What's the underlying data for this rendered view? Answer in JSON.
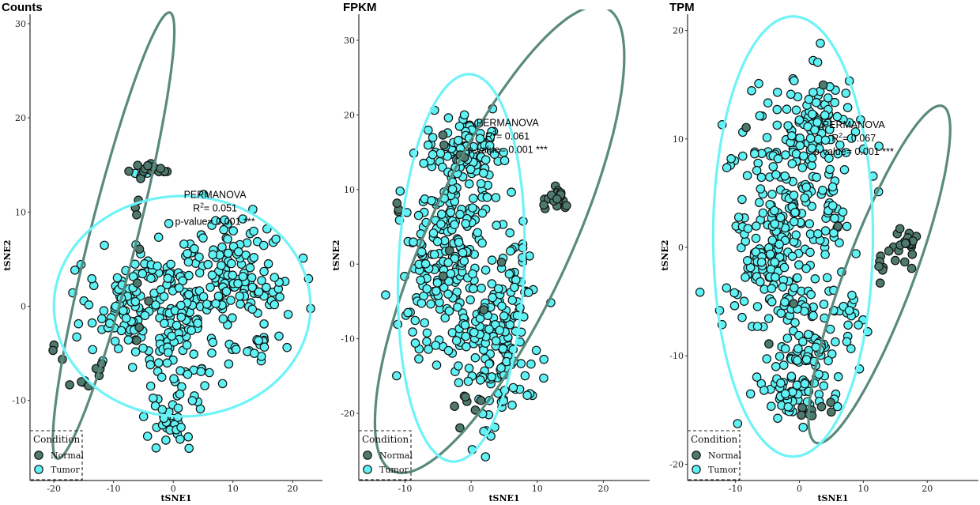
{
  "colors": {
    "normal": "#4e7a6e",
    "tumor": "#5ff2f5",
    "ellipse_normal": "#5a8a7e",
    "ellipse_tumor": "#6ef3f7"
  },
  "legend": {
    "title": "Condition",
    "items": [
      {
        "label": "Normal",
        "color": "#4e7a6e"
      },
      {
        "label": "Tumor",
        "color": "#5ff2f5"
      }
    ]
  },
  "chart_data": [
    {
      "type": "scatter",
      "title": "Counts",
      "xlabel": "tSNE1",
      "ylabel": "tSNE2",
      "xlim": [
        -24,
        25
      ],
      "ylim": [
        -18.5,
        31
      ],
      "xticks": [
        -20,
        -10,
        0,
        10,
        20
      ],
      "yticks": [
        -10,
        0,
        10,
        20,
        30
      ],
      "annotation": {
        "title": "PERMANOVA",
        "r2": "0.051",
        "pvalue": "0.001 ***",
        "x": 7,
        "y": 11.5
      },
      "ellipses": {
        "Normal": {
          "cx": -10,
          "cy": 7.5,
          "rx": 25.5,
          "ry": 3.8,
          "angle": 68
        },
        "Tumor": {
          "cx": 1.5,
          "cy": 0,
          "rx": 21.5,
          "ry": 11.7,
          "angle": 0
        }
      },
      "normal_clusters": [
        {
          "cx": -4,
          "cy": 14.3,
          "sx": 1.5,
          "sy": 0.5,
          "n": 16
        },
        {
          "cx": -6,
          "cy": 10.4,
          "sx": 0.7,
          "sy": 0.6,
          "n": 3
        },
        {
          "cx": -15.5,
          "cy": -8.3,
          "sx": 0.7,
          "sy": 0.5,
          "n": 5
        },
        {
          "cx": -12.5,
          "cy": -6.5,
          "sx": 0.6,
          "sy": 0.5,
          "n": 4
        },
        {
          "cx": -20,
          "cy": -4.8,
          "sx": 1,
          "sy": 1,
          "n": 3
        },
        {
          "cx": 0,
          "cy": 0,
          "sx": 6,
          "sy": 3,
          "n": 5
        }
      ],
      "tumor_clusters": [
        {
          "cx": -4,
          "cy": 0.5,
          "sx": 6.5,
          "sy": 3.2,
          "n": 170
        },
        {
          "cx": 10,
          "cy": 3,
          "sx": 4.5,
          "sy": 3,
          "n": 140
        },
        {
          "cx": 2,
          "cy": -6,
          "sx": 3.5,
          "sy": 3,
          "n": 50
        },
        {
          "cx": 0,
          "cy": -12.5,
          "sx": 1.5,
          "sy": 1.3,
          "n": 25
        },
        {
          "cx": 15,
          "cy": -4.5,
          "sx": 1.5,
          "sy": 1.2,
          "n": 12
        },
        {
          "cx": -4,
          "cy": 14,
          "sx": 2,
          "sy": 0.5,
          "n": 4
        }
      ]
    },
    {
      "type": "scatter",
      "title": "FPKM",
      "xlabel": "tSNE1",
      "ylabel": "tSNE2",
      "xlim": [
        -17,
        27
      ],
      "ylim": [
        -29,
        33.5
      ],
      "xticks": [
        -10,
        0,
        10,
        20
      ],
      "yticks": [
        -20,
        -10,
        0,
        10,
        20,
        30
      ],
      "annotation": {
        "title": "PERMANOVA",
        "r2": "0.061",
        "pvalue": "0.001 ***",
        "x": 5.5,
        "y": 18.5
      },
      "ellipses": {
        "Normal": {
          "cx": 4.3,
          "cy": 3.3,
          "rx": 35,
          "ry": 10.5,
          "angle": 62
        },
        "Tumor": {
          "cx": -1.5,
          "cy": -0.5,
          "rx": 9.5,
          "ry": 26,
          "angle": -3
        }
      },
      "normal_clusters": [
        {
          "cx": 13,
          "cy": 9,
          "sx": 0.9,
          "sy": 1,
          "n": 20
        },
        {
          "cx": -1.5,
          "cy": -18.7,
          "sx": 1.2,
          "sy": 1,
          "n": 6
        },
        {
          "cx": -4,
          "cy": 15,
          "sx": 2,
          "sy": 1.2,
          "n": 4
        },
        {
          "cx": -11.5,
          "cy": 7,
          "sx": 0.6,
          "sy": 0.6,
          "n": 3
        },
        {
          "cx": 0,
          "cy": -2,
          "sx": 4,
          "sy": 7,
          "n": 4
        }
      ],
      "tumor_clusters": [
        {
          "cx": -3,
          "cy": 2,
          "sx": 3.5,
          "sy": 6,
          "n": 190
        },
        {
          "cx": -1,
          "cy": 15,
          "sx": 2.5,
          "sy": 3,
          "n": 95
        },
        {
          "cx": 3,
          "cy": -12,
          "sx": 3.5,
          "sy": 4.5,
          "n": 130
        },
        {
          "cx": 6,
          "cy": -5,
          "sx": 2,
          "sy": 3,
          "n": 30
        },
        {
          "cx": -8,
          "cy": -8,
          "sx": 2,
          "sy": 3,
          "n": 20
        },
        {
          "cx": 7,
          "cy": 3,
          "sx": 1.5,
          "sy": 1.8,
          "n": 12
        }
      ]
    },
    {
      "type": "scatter",
      "title": "TPM",
      "xlabel": "tSNE1",
      "ylabel": "tSNE2",
      "xlim": [
        -17.5,
        28
      ],
      "ylim": [
        -21.5,
        21.5
      ],
      "xticks": [
        -10,
        0,
        10,
        20
      ],
      "yticks": [
        -20,
        -10,
        0,
        10,
        20
      ],
      "annotation": {
        "title": "PERMANOVA",
        "r2": "0.067",
        "pvalue": "0.001 ***",
        "x": 8.5,
        "y": 11
      },
      "ellipses": {
        "Normal": {
          "cx": 12.5,
          "cy": -2.5,
          "rx": 18.5,
          "ry": 4.8,
          "angle": 56
        },
        "Tumor": {
          "cx": -1,
          "cy": 1,
          "rx": 12.5,
          "ry": 20.3,
          "angle": 0
        }
      },
      "normal_clusters": [
        {
          "cx": 16,
          "cy": 0,
          "sx": 1.2,
          "sy": 0.8,
          "n": 22
        },
        {
          "cx": 12.8,
          "cy": -2,
          "sx": 0.6,
          "sy": 0.8,
          "n": 6
        },
        {
          "cx": 1,
          "cy": -15.5,
          "sx": 0.6,
          "sy": 0.5,
          "n": 5
        },
        {
          "cx": 4.5,
          "cy": -15,
          "sx": 1,
          "sy": 0.5,
          "n": 3
        },
        {
          "cx": 0,
          "cy": 3,
          "sx": 4,
          "sy": 7,
          "n": 5
        }
      ],
      "tumor_clusters": [
        {
          "cx": -3.5,
          "cy": 1,
          "sx": 4,
          "sy": 5,
          "n": 230
        },
        {
          "cx": 2,
          "cy": 11,
          "sx": 3.5,
          "sy": 2.5,
          "n": 110
        },
        {
          "cx": 2,
          "cy": -9,
          "sx": 3.5,
          "sy": 3,
          "n": 90
        },
        {
          "cx": -2,
          "cy": -13.5,
          "sx": 2,
          "sy": 1,
          "n": 35
        },
        {
          "cx": 8,
          "cy": -6,
          "sx": 1.5,
          "sy": 1.5,
          "n": 15
        },
        {
          "cx": 5,
          "cy": 4,
          "sx": 2.5,
          "sy": 2,
          "n": 25
        }
      ]
    }
  ]
}
